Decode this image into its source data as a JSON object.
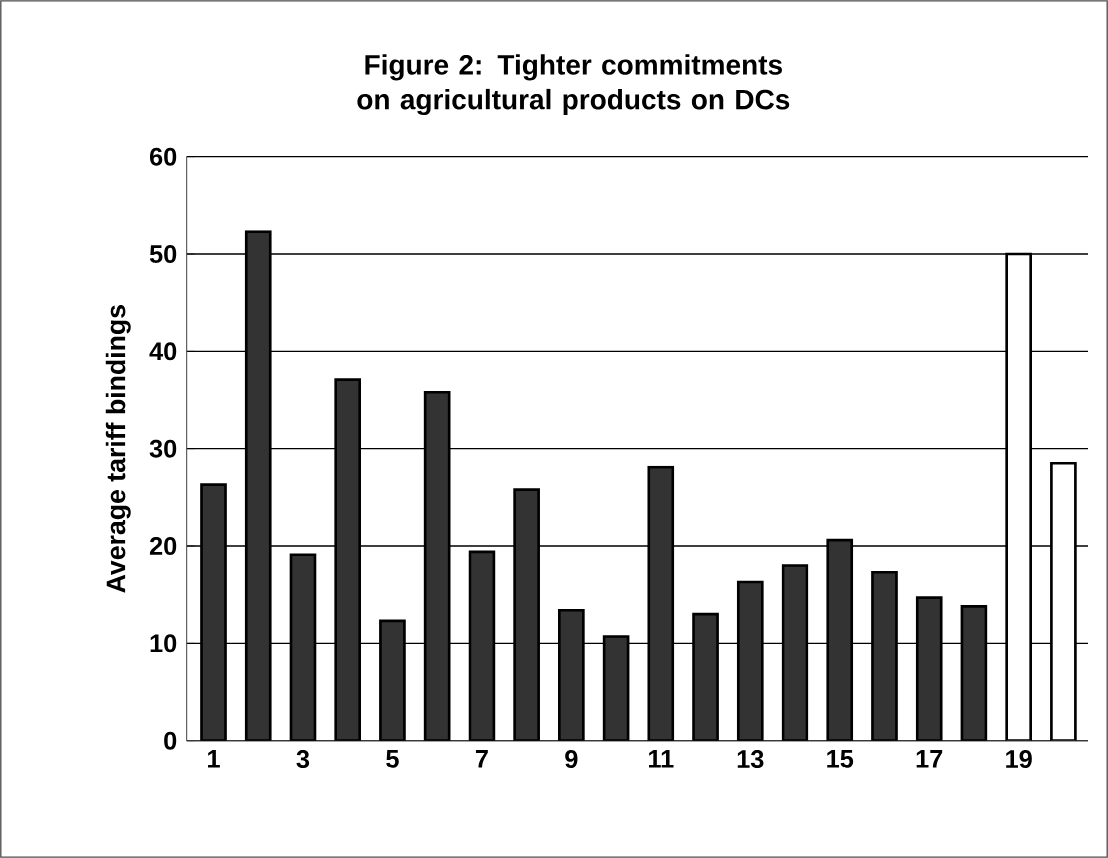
{
  "chart_data": {
    "type": "bar",
    "title": "Figure 2: Tighter commitments on agricultural products on DCs",
    "ylabel": "Average tariff bindings",
    "categories": [
      "1",
      null,
      "3",
      null,
      "5",
      null,
      "7",
      null,
      "9",
      null,
      "11",
      null,
      "13",
      null,
      "15",
      null,
      "17",
      null,
      "19",
      null
    ],
    "values": [
      26.3,
      52.3,
      19.1,
      37.1,
      12.3,
      35.8,
      19.4,
      25.8,
      13.4,
      10.7,
      28.1,
      13.0,
      16.3,
      18.0,
      20.6,
      17.3,
      14.7,
      13.8,
      50.0,
      28.5
    ],
    "colors": [
      "#333333",
      "#333333",
      "#333333",
      "#333333",
      "#333333",
      "#333333",
      "#333333",
      "#333333",
      "#333333",
      "#333333",
      "#333333",
      "#333333",
      "#333333",
      "#333333",
      "#333333",
      "#333333",
      "#333333",
      "#333333",
      "#ffffff",
      "#ffffff"
    ],
    "ylim": [
      0,
      60
    ],
    "yticks": [
      0,
      10,
      20,
      30,
      40,
      50,
      60
    ],
    "grid": "y"
  }
}
